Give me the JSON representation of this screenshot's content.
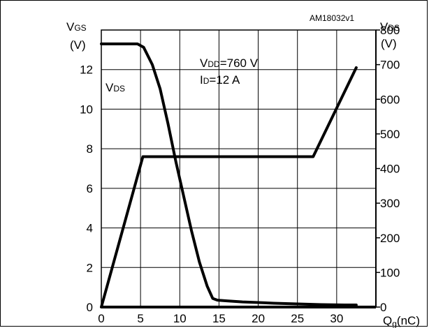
{
  "chart_data": {
    "type": "line",
    "reference_code": "AM18032v1",
    "x_axis": {
      "label_main": "Q",
      "label_sub": "g",
      "label_unit": "(nC)",
      "range": [
        0,
        35
      ],
      "ticks": [
        0,
        5,
        10,
        15,
        20,
        25,
        30
      ]
    },
    "y_left": {
      "label_main": "V",
      "label_sub": "GS",
      "label_unit": "(V)",
      "range": [
        0,
        14
      ],
      "ticks": [
        0,
        2,
        4,
        6,
        8,
        10,
        12
      ]
    },
    "y_right": {
      "label_main": "V",
      "label_sub": "DS",
      "label_unit": "(V)",
      "range": [
        0,
        800
      ],
      "ticks": [
        0,
        100,
        200,
        300,
        400,
        500,
        600,
        700,
        800
      ]
    },
    "conditions": [
      {
        "main": "V",
        "sub": "DD",
        "value": "=760 V"
      },
      {
        "main": "I",
        "sub": "D",
        "value": "=12 A"
      }
    ],
    "series_label": {
      "main": "V",
      "sub": "DS"
    },
    "series": [
      {
        "axis": "left",
        "x": [
          0,
          5.3,
          27,
          32.5
        ],
        "y": [
          0,
          7.6,
          7.6,
          12.1
        ]
      },
      {
        "axis": "right",
        "x": [
          0,
          4.6,
          5.4,
          6.5,
          7.5,
          8.5,
          9.5,
          10.5,
          11.5,
          12.5,
          13.5,
          14.2,
          14.8,
          16,
          18,
          20,
          22,
          25,
          28,
          31,
          32.5
        ],
        "y": [
          760,
          760,
          750,
          700,
          630,
          530,
          420,
          320,
          220,
          130,
          60,
          25,
          20,
          18,
          15,
          13,
          11,
          9,
          7,
          6,
          6
        ]
      }
    ],
    "grid": true
  }
}
